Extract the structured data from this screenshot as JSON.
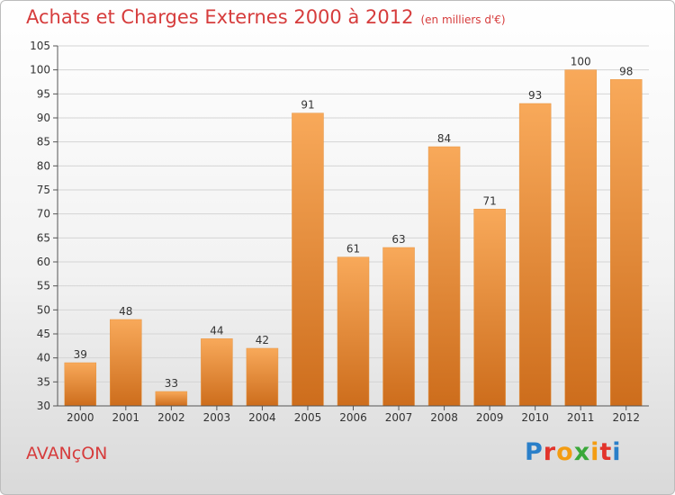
{
  "title": "Achats et Charges Externes 2000 à 2012",
  "unit": "(en milliers d'€)",
  "commune": "AVANçON",
  "logo": {
    "text": "Proxiti",
    "colors": [
      "#2a7fc9",
      "#e2342b",
      "#f39c12",
      "#3aa83a",
      "#f39c12",
      "#e2342b",
      "#2a7fc9"
    ]
  },
  "colors": {
    "title": "#d63c3c",
    "bar_top": "#f8a95a",
    "bar_bottom": "#cd6d1c",
    "grid": "#d4d4d4",
    "axis": "#555555"
  },
  "chart_data": {
    "type": "bar",
    "title": "Achats et Charges Externes 2000 à 2012",
    "subtitle": "(en milliers d'€)",
    "categories": [
      "2000",
      "2001",
      "2002",
      "2003",
      "2004",
      "2005",
      "2006",
      "2007",
      "2008",
      "2009",
      "2010",
      "2011",
      "2012"
    ],
    "values": [
      39,
      48,
      33,
      44,
      42,
      91,
      61,
      63,
      84,
      71,
      93,
      100,
      98
    ],
    "ylim": [
      30,
      105
    ],
    "yticks": [
      30,
      35,
      40,
      45,
      50,
      55,
      60,
      65,
      70,
      75,
      80,
      85,
      90,
      95,
      100,
      105
    ],
    "grid": true,
    "data_labels": true
  }
}
